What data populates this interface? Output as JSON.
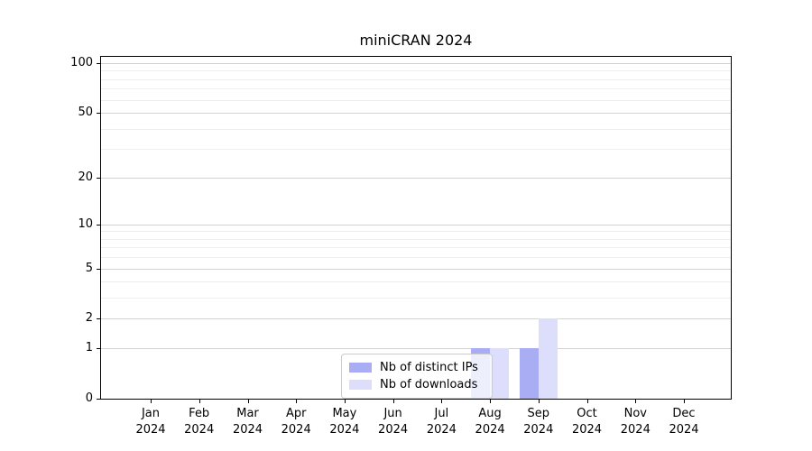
{
  "chart_data": {
    "type": "bar",
    "title": "miniCRAN 2024",
    "year_label": "2024",
    "categories": [
      "Jan",
      "Feb",
      "Mar",
      "Apr",
      "May",
      "Jun",
      "Jul",
      "Aug",
      "Sep",
      "Oct",
      "Nov",
      "Dec"
    ],
    "series": [
      {
        "name": "Nb of distinct IPs",
        "color": "#a9aef4",
        "values": [
          0,
          0,
          0,
          0,
          0,
          0,
          0,
          1,
          1,
          0,
          0,
          0
        ]
      },
      {
        "name": "Nb of downloads",
        "color": "#dcdefb",
        "values": [
          0,
          0,
          0,
          0,
          0,
          0,
          0,
          1,
          2,
          0,
          0,
          0
        ]
      }
    ],
    "yscale": "log1p",
    "yticks": [
      0,
      1,
      2,
      5,
      10,
      20,
      50,
      100
    ],
    "minor_yticks": [
      3,
      4,
      6,
      7,
      8,
      9,
      30,
      40,
      60,
      70,
      80,
      90
    ],
    "ylim": [
      0,
      110
    ],
    "xlabel": "",
    "ylabel": "",
    "grid": "horizontal",
    "legend_position": "lower-center-inside",
    "colors": {
      "major_grid": "#d3d3d3",
      "minor_grid": "#eeeeee",
      "spine": "#000000",
      "background": "#ffffff"
    }
  }
}
